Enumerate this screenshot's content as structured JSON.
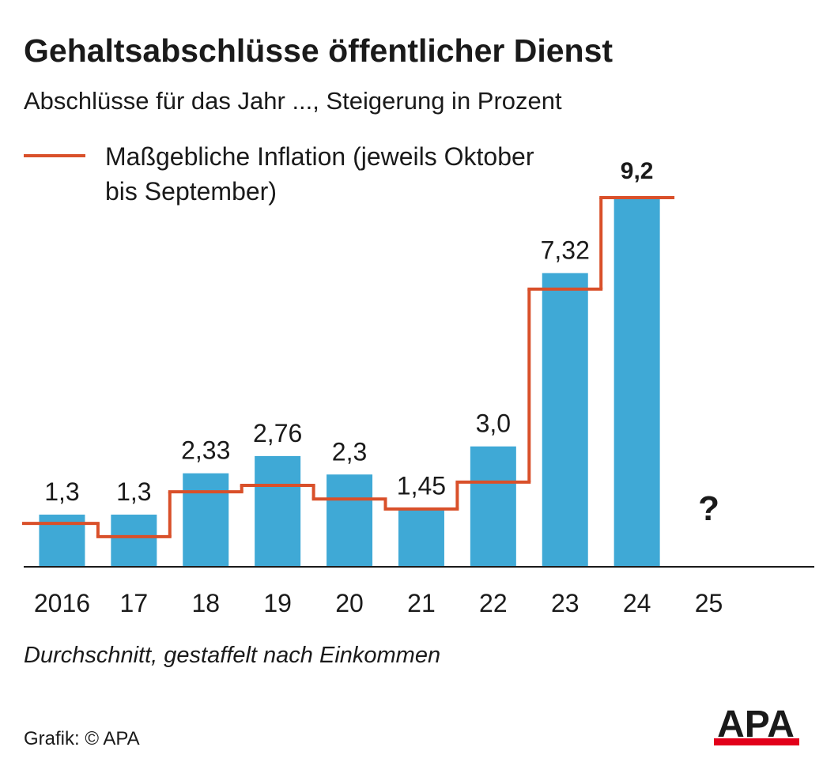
{
  "chart_data": {
    "type": "bar",
    "title": "Gehaltsabschlüsse öffentlicher Dienst",
    "subtitle": "Abschlüsse für das Jahr ..., Steigerung in Prozent",
    "categories": [
      "2016",
      "17",
      "18",
      "19",
      "20",
      "21",
      "22",
      "23",
      "24",
      "25"
    ],
    "values": [
      1.3,
      1.3,
      2.33,
      2.76,
      2.3,
      1.45,
      3.0,
      7.32,
      9.2,
      null
    ],
    "value_labels": [
      "1,3",
      "1,3",
      "2,33",
      "2,76",
      "2,3",
      "1,45",
      "3,0",
      "7,32",
      "9,2",
      null
    ],
    "color": "#3fa9d6",
    "ylim": [
      0,
      9.2
    ],
    "lines": [
      {
        "name": "Maßgebliche Inflation (jeweils Oktober bis September)",
        "color": "#d9502a",
        "values": [
          1.08,
          0.75,
          1.87,
          2.03,
          1.69,
          1.44,
          2.11,
          6.92,
          9.2,
          null
        ]
      }
    ],
    "annotations": [
      "?"
    ],
    "footnote": "Durchschnitt, gestaffelt nach Einkommen",
    "source": "Grafik: © APA",
    "logo": "APA"
  }
}
